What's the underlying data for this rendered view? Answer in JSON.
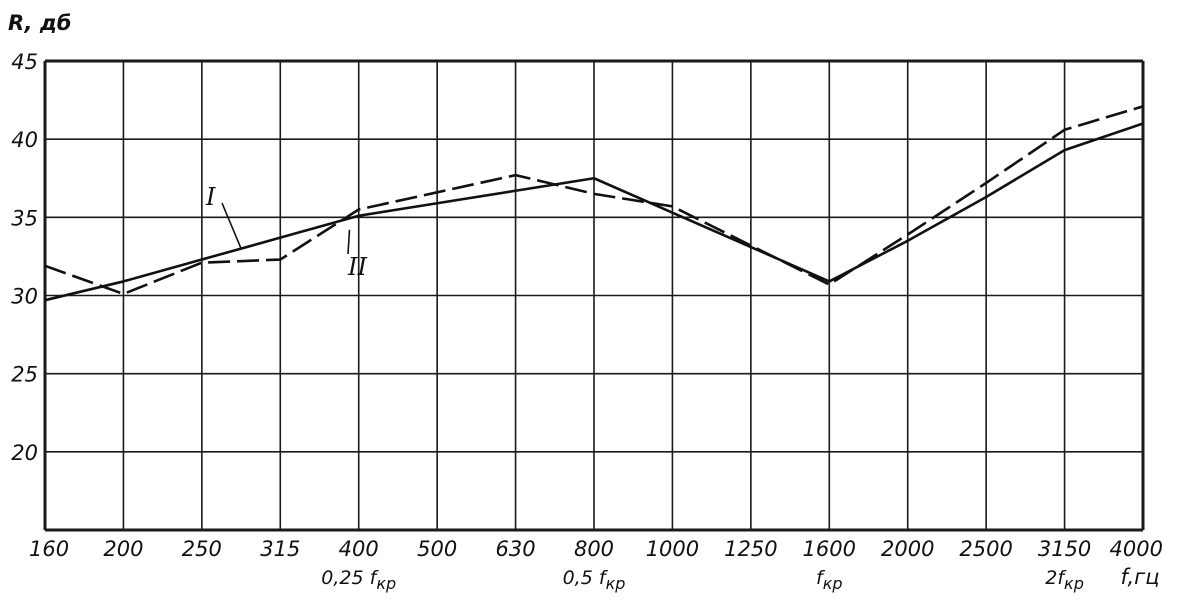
{
  "chart_data": {
    "type": "line",
    "title": "",
    "ylabel": "R, дб",
    "xlabel": "f, гц",
    "x": [
      "160",
      "200",
      "250",
      "315",
      "400",
      "500",
      "630",
      "800",
      "1000",
      "1250",
      "1600",
      "2000",
      "2500",
      "3150",
      "4000"
    ],
    "x_scale": "categorical, log-spaced 1/3-octave",
    "ylim": [
      15,
      45
    ],
    "yticks": [
      "20",
      "25",
      "30",
      "35",
      "40",
      "45"
    ],
    "grid": true,
    "series": [
      {
        "name": "I",
        "style": "solid",
        "color": "#111111",
        "points": [
          [
            0,
            29.7
          ],
          [
            1,
            30.9
          ],
          [
            2,
            32.3
          ],
          [
            3,
            33.7
          ],
          [
            4,
            35.1
          ],
          [
            5,
            35.9
          ],
          [
            6,
            36.7
          ],
          [
            7,
            37.5
          ],
          [
            8,
            35.3
          ],
          [
            9,
            33.1
          ],
          [
            10,
            30.9
          ],
          [
            11,
            33.5
          ],
          [
            12,
            36.3
          ],
          [
            13,
            39.3
          ],
          [
            14,
            41.0
          ]
        ]
      },
      {
        "name": "II",
        "style": "dashed",
        "color": "#111111",
        "points": [
          [
            0,
            31.9
          ],
          [
            1,
            30.1
          ],
          [
            2,
            32.1
          ],
          [
            3,
            32.3
          ],
          [
            4,
            35.5
          ],
          [
            5,
            36.6
          ],
          [
            6,
            37.7
          ],
          [
            7,
            36.5
          ],
          [
            8,
            35.7
          ],
          [
            9,
            33.2
          ],
          [
            10,
            30.7
          ],
          [
            11,
            33.9
          ],
          [
            12,
            37.2
          ],
          [
            13,
            40.6
          ],
          [
            14,
            42.1
          ]
        ]
      }
    ],
    "special_labels": [
      {
        "at": 4,
        "coef": "0,25",
        "sym": "f",
        "sub": "кр"
      },
      {
        "at": 7,
        "coef": "0,5",
        "sym": "f",
        "sub": "кр"
      },
      {
        "at": 10,
        "coef": "",
        "sym": "f",
        "sub": "кр"
      },
      {
        "at": 13,
        "coef": "2",
        "sym": "f",
        "sub": "кр"
      }
    ],
    "x_axis_unit": "f,гц"
  }
}
